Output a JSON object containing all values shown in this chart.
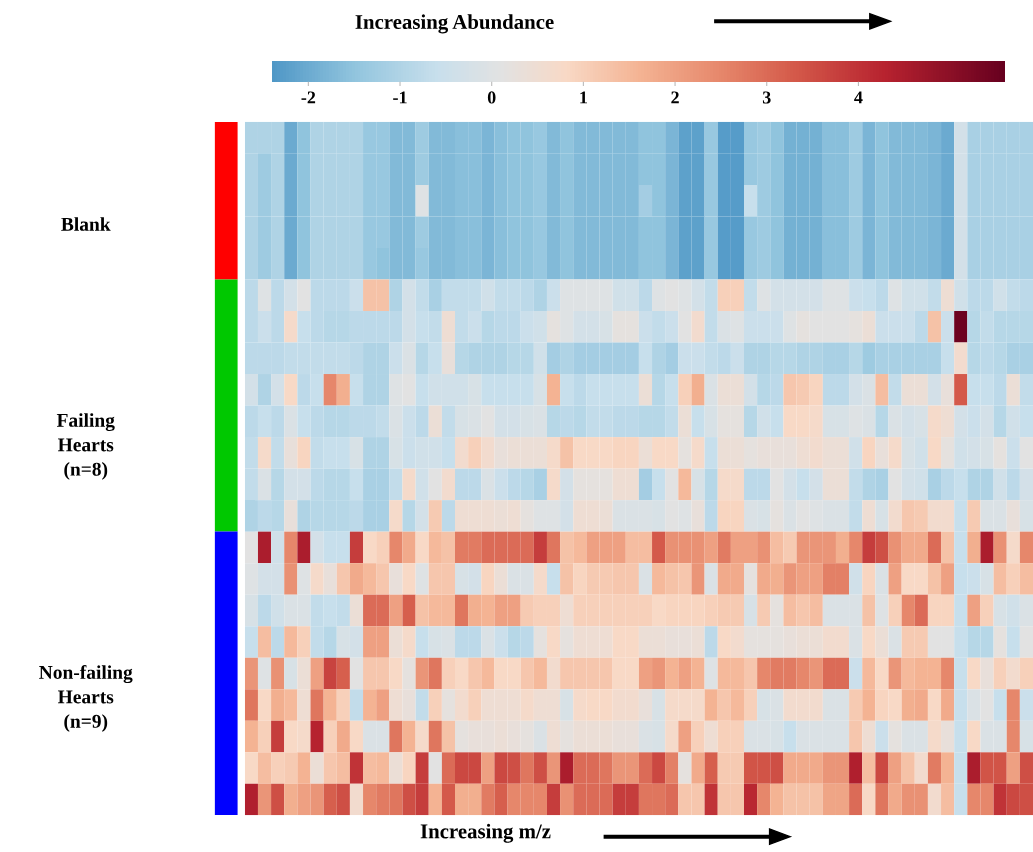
{
  "chart_data": {
    "type": "heatmap",
    "xlabel": "Increasing m/z",
    "clabel": "Increasing Abundance",
    "clim": [
      -2.4,
      5.6
    ],
    "cticks": [
      -2,
      -1,
      0,
      1,
      2,
      3,
      4
    ],
    "categories": [
      null,
      null,
      null,
      null,
      null,
      null,
      null,
      null,
      null,
      null,
      null,
      null,
      null,
      null,
      null,
      null,
      null,
      null,
      null,
      null,
      null,
      null,
      null,
      null,
      null,
      null,
      null,
      null,
      null,
      null,
      null,
      null,
      null,
      null,
      null,
      null,
      null,
      null,
      null,
      null,
      null,
      null,
      null,
      null,
      null,
      null,
      null,
      null,
      null,
      null,
      null,
      null,
      null,
      null,
      null,
      null,
      null,
      null,
      null,
      null
    ],
    "y_categories": [
      null,
      null,
      null,
      "Blank",
      null,
      null,
      null,
      null,
      null,
      null,
      "Failing Hearts (n=8)",
      null,
      null,
      null,
      null,
      null,
      null,
      null,
      "Non-failing Hearts (n=9)",
      null,
      null,
      null
    ],
    "cells": [
      [
        -1.0,
        -1.0,
        -1.0,
        -2.0,
        -1.5,
        -1.0,
        -1.0,
        -1.0,
        -1.0,
        -1.4,
        -1.4,
        -1.7,
        -1.7,
        -1.3,
        -1.7,
        -1.7,
        -1.6,
        -1.6,
        -1.8,
        -1.6,
        -1.5,
        -1.5,
        -1.4,
        -1.7,
        -1.5,
        -1.7,
        -1.7,
        -1.7,
        -1.7,
        -1.7,
        -1.5,
        -1.5,
        -1.8,
        -2.2,
        -2.2,
        -1.4,
        -2.3,
        -2.3,
        -1.4,
        -1.3,
        -1.5,
        -1.9,
        -1.9,
        -1.9,
        -1.6,
        -1.6,
        -1.3,
        -1.8,
        -1.5,
        -1.7,
        -1.7,
        -1.7,
        -1.8,
        -2.0,
        -0.3,
        -1.1,
        -1.1,
        -1.1,
        -1.1,
        -1.1
      ],
      [
        -1.0,
        -1.3,
        -1.0,
        -2.0,
        -1.5,
        -1.0,
        -1.0,
        -1.0,
        -1.0,
        -1.4,
        -1.4,
        -1.7,
        -1.7,
        -1.3,
        -1.7,
        -1.7,
        -1.6,
        -1.6,
        -1.8,
        -1.6,
        -1.5,
        -1.5,
        -1.4,
        -1.7,
        -1.5,
        -1.7,
        -1.7,
        -1.7,
        -1.7,
        -1.7,
        -1.5,
        -1.5,
        -1.8,
        -2.2,
        -2.2,
        -1.4,
        -2.3,
        -2.3,
        -1.4,
        -1.3,
        -1.5,
        -1.9,
        -1.9,
        -1.9,
        -1.6,
        -1.6,
        -1.3,
        -1.8,
        -1.5,
        -1.7,
        -1.7,
        -1.7,
        -1.8,
        -2.0,
        -0.3,
        -1.1,
        -1.1,
        -1.1,
        -1.1,
        -1.1
      ],
      [
        -1.0,
        -1.3,
        -1.0,
        -2.0,
        -1.5,
        -1.0,
        -1.0,
        -1.0,
        -1.0,
        -1.4,
        -1.4,
        -1.7,
        -1.7,
        0.0,
        -1.7,
        -1.7,
        -1.6,
        -1.6,
        -1.8,
        -1.6,
        -1.5,
        -1.5,
        -1.4,
        -1.7,
        -1.5,
        -1.7,
        -1.7,
        -1.7,
        -1.7,
        -1.7,
        -1.2,
        -1.5,
        -1.8,
        -2.2,
        -2.2,
        -1.4,
        -2.3,
        -2.3,
        -0.6,
        -1.3,
        -1.5,
        -1.9,
        -1.9,
        -1.9,
        -1.6,
        -1.6,
        -1.3,
        -1.8,
        -1.5,
        -1.7,
        -1.7,
        -1.7,
        -1.8,
        -2.0,
        -0.3,
        -1.1,
        -1.1,
        -1.1,
        -1.1,
        -1.1
      ],
      [
        -1.0,
        -1.3,
        -1.0,
        -2.0,
        -1.5,
        -1.0,
        -1.0,
        -1.0,
        -1.0,
        -1.4,
        -1.4,
        -1.7,
        -1.7,
        -1.3,
        -1.7,
        -1.7,
        -1.6,
        -1.6,
        -1.8,
        -1.6,
        -1.5,
        -1.5,
        -1.4,
        -1.7,
        -1.5,
        -1.7,
        -1.7,
        -1.7,
        -1.7,
        -1.7,
        -1.5,
        -1.5,
        -1.8,
        -2.2,
        -2.2,
        -1.4,
        -2.3,
        -2.3,
        -1.4,
        -1.3,
        -1.5,
        -1.9,
        -1.9,
        -1.9,
        -1.6,
        -1.6,
        -1.3,
        -1.8,
        -1.5,
        -1.7,
        -1.7,
        -1.7,
        -1.8,
        -2.0,
        -0.3,
        -1.1,
        -1.1,
        -1.1,
        -1.1,
        -1.1
      ],
      [
        -1.0,
        -1.3,
        -1.0,
        -2.0,
        -1.5,
        -1.0,
        -1.0,
        -1.0,
        -1.0,
        -1.4,
        -1.5,
        -1.7,
        -1.7,
        -1.4,
        -1.7,
        -1.7,
        -1.6,
        -1.6,
        -1.8,
        -1.6,
        -1.5,
        -1.5,
        -1.4,
        -1.7,
        -1.5,
        -1.7,
        -1.7,
        -1.7,
        -1.7,
        -1.7,
        -1.5,
        -1.5,
        -1.8,
        -2.2,
        -2.2,
        -1.4,
        -2.3,
        -2.3,
        -1.4,
        -1.3,
        -1.5,
        -1.9,
        -1.9,
        -1.9,
        -1.6,
        -1.6,
        -1.3,
        -1.8,
        -1.5,
        -1.7,
        -1.7,
        -1.7,
        -1.8,
        -2.0,
        -0.3,
        -1.1,
        -1.1,
        -1.1,
        -1.1,
        -1.1
      ],
      [
        -0.8,
        0.0,
        -0.8,
        -0.3,
        0.1,
        -0.8,
        -0.8,
        -0.8,
        -0.5,
        1.3,
        1.3,
        -1.0,
        -0.3,
        -0.7,
        -1.1,
        -0.7,
        -0.7,
        -0.7,
        -0.4,
        -0.7,
        -0.7,
        -0.8,
        -1.0,
        -0.5,
        0.0,
        0.0,
        0.0,
        0.0,
        -0.4,
        -0.4,
        -0.8,
        0.0,
        0.1,
        0.0,
        -0.3,
        -0.7,
        1.0,
        1.0,
        -0.7,
        0.0,
        -0.3,
        -0.3,
        -0.3,
        -0.3,
        0.0,
        0.0,
        -0.5,
        -0.6,
        -0.8,
        0.0,
        -0.4,
        -0.4,
        -0.7,
        0.5,
        -0.4,
        -0.8,
        -0.8,
        -0.4,
        -0.7,
        -0.8
      ],
      [
        -0.8,
        -0.5,
        -0.8,
        0.7,
        -0.6,
        -0.8,
        -0.9,
        -0.9,
        -0.8,
        -0.8,
        -0.8,
        -0.8,
        -0.3,
        -0.6,
        -0.7,
        0.5,
        -0.7,
        -0.5,
        -0.9,
        -0.8,
        -0.8,
        -0.5,
        -0.4,
        0.2,
        0.0,
        -0.3,
        -0.3,
        -0.2,
        0.2,
        0.2,
        -0.5,
        -0.7,
        -0.5,
        0.1,
        0.6,
        -0.7,
        -0.1,
        0.0,
        -0.5,
        -0.5,
        -0.5,
        0.0,
        0.2,
        0.1,
        0.1,
        0.1,
        0.2,
        0.4,
        -0.5,
        -0.5,
        -0.5,
        -0.8,
        1.3,
        -0.5,
        5.5,
        -0.9,
        -0.7,
        -0.9,
        -0.9,
        -0.9
      ],
      [
        -0.8,
        -0.8,
        -0.8,
        -0.7,
        -0.7,
        -0.7,
        -0.7,
        -0.7,
        -0.8,
        -1.0,
        -1.0,
        -0.5,
        -0.1,
        -0.9,
        -0.6,
        0.3,
        -0.9,
        -1.0,
        -1.0,
        -1.0,
        -0.9,
        -0.9,
        -0.4,
        -1.2,
        -1.0,
        -1.2,
        -1.2,
        -1.2,
        -1.2,
        -1.2,
        -0.6,
        -1.0,
        -1.2,
        -0.5,
        -0.5,
        -0.7,
        -0.8,
        -0.5,
        -1.0,
        -1.0,
        -0.9,
        -0.9,
        -1.0,
        -1.0,
        -1.1,
        -1.1,
        -0.9,
        -1.3,
        -1.1,
        -1.1,
        -1.1,
        -1.1,
        -1.1,
        -0.6,
        0.6,
        -0.9,
        -0.8,
        -0.9,
        -1.1,
        -1.1
      ],
      [
        -0.3,
        -1.0,
        -0.3,
        0.8,
        -0.8,
        -0.6,
        2.5,
        1.7,
        -0.6,
        -1.0,
        -1.0,
        0.0,
        0.1,
        -0.6,
        -0.4,
        -0.4,
        -0.4,
        -0.2,
        -0.6,
        -0.6,
        -0.6,
        -0.6,
        -0.2,
        1.6,
        -0.6,
        -0.8,
        -0.6,
        -0.6,
        -0.6,
        -0.6,
        0.4,
        -0.9,
        -0.6,
        1.0,
        1.7,
        -0.1,
        0.4,
        0.4,
        -0.3,
        -0.9,
        -0.8,
        1.2,
        1.1,
        0.9,
        -0.8,
        -0.8,
        -0.3,
        -0.1,
        1.4,
        -0.7,
        0.4,
        0.4,
        -0.3,
        0.3,
        3.3,
        -0.6,
        -0.6,
        -0.8,
        0.4,
        -0.7
      ],
      [
        -0.8,
        -0.6,
        -0.8,
        -0.1,
        -0.6,
        -0.8,
        -0.9,
        -0.9,
        -0.8,
        -0.8,
        -0.7,
        -0.1,
        -0.5,
        -0.8,
        0.4,
        -0.7,
        -0.2,
        -0.1,
        0.1,
        -0.3,
        -0.3,
        -0.2,
        -0.1,
        -0.9,
        -0.8,
        -0.9,
        -0.7,
        -0.7,
        -0.8,
        -0.8,
        -0.9,
        -0.9,
        -0.7,
        0.4,
        -0.6,
        -0.2,
        0.2,
        0.2,
        -0.9,
        -0.4,
        -0.6,
        0.8,
        0.8,
        0.7,
        -0.2,
        -0.2,
        0.0,
        -0.1,
        -0.9,
        -0.1,
        -0.3,
        -0.2,
        0.7,
        0.5,
        -0.3,
        -0.5,
        -0.3,
        -0.9,
        -0.4,
        -0.6
      ],
      [
        -0.7,
        0.7,
        -0.7,
        0.3,
        0.9,
        -0.7,
        -0.6,
        -0.6,
        -0.2,
        -1.0,
        -1.0,
        -0.2,
        -0.5,
        -0.4,
        -0.4,
        -0.6,
        0.6,
        1.0,
        0.6,
        0.3,
        0.4,
        0.4,
        0.4,
        0.7,
        1.3,
        0.8,
        0.8,
        0.8,
        0.9,
        0.9,
        0.4,
        0.8,
        0.8,
        0.2,
        0.7,
        -0.6,
        0.4,
        0.4,
        0.2,
        0.3,
        0.3,
        0.3,
        0.5,
        0.6,
        0.4,
        0.4,
        -0.4,
        0.9,
        0.3,
        0.7,
        -0.2,
        -0.4,
        0.8,
        0.2,
        -0.4,
        -0.3,
        -0.2,
        0.2,
        -0.5,
        0.1
      ],
      [
        -0.7,
        -0.1,
        -0.9,
        -0.3,
        -0.3,
        -0.8,
        -0.9,
        -0.9,
        -0.6,
        -1.1,
        -1.1,
        -0.7,
        0.7,
        -0.4,
        0.1,
        0.6,
        -0.8,
        -0.8,
        -0.1,
        -0.5,
        -0.8,
        -0.9,
        -1.1,
        0.7,
        -0.3,
        0.2,
        0.2,
        0.2,
        0.5,
        0.5,
        -1.2,
        -0.6,
        0.1,
        1.5,
        -0.2,
        -0.9,
        0.7,
        0.7,
        -0.8,
        -0.8,
        0.1,
        -0.3,
        -0.6,
        -0.3,
        0.4,
        0.4,
        -0.7,
        -1.0,
        -1.1,
        0.1,
        -0.3,
        -0.4,
        -1.1,
        -0.8,
        -0.6,
        -1.0,
        -1.0,
        -0.4,
        -0.8,
        -0.3
      ],
      [
        -1.0,
        -0.8,
        -0.9,
        0.3,
        -1.0,
        -0.9,
        -0.9,
        -0.9,
        -0.8,
        -1.1,
        -1.1,
        0.7,
        -0.9,
        -0.3,
        1.1,
        -0.8,
        0.5,
        0.5,
        0.5,
        0.4,
        0.5,
        0.2,
        0.0,
        0.0,
        -0.3,
        0.5,
        0.5,
        0.4,
        -0.1,
        -0.1,
        -0.1,
        -0.2,
        0.1,
        0.0,
        0.3,
        -0.8,
        0.9,
        0.9,
        -0.1,
        -0.2,
        0.2,
        -0.1,
        0.1,
        0.0,
        -0.1,
        -0.1,
        -0.7,
        0.5,
        -0.2,
        0.6,
        1.2,
        1.1,
        0.6,
        0.6,
        -0.6,
        1.1,
        -0.1,
        -0.1,
        0.3,
        -0.2
      ],
      [
        0.1,
        4.5,
        -0.4,
        2.5,
        4.5,
        -0.3,
        -0.6,
        -0.6,
        3.8,
        0.8,
        1.0,
        2.5,
        1.8,
        0.8,
        1.5,
        1.3,
        2.7,
        2.7,
        3.0,
        3.0,
        3.0,
        3.0,
        3.8,
        2.8,
        1.3,
        1.5,
        2.0,
        2.0,
        2.0,
        1.4,
        1.4,
        3.3,
        2.3,
        2.3,
        2.3,
        2.0,
        2.7,
        2.0,
        2.0,
        2.3,
        1.4,
        1.1,
        2.2,
        2.2,
        2.2,
        1.7,
        2.5,
        3.8,
        3.5,
        2.3,
        1.8,
        1.8,
        3.0,
        1.3,
        -0.6,
        1.7,
        4.5,
        2.3,
        0.7,
        2.5
      ],
      [
        0.0,
        -0.3,
        -0.3,
        2.3,
        0.0,
        0.7,
        0.3,
        1.2,
        1.8,
        1.5,
        1.2,
        0.3,
        0.8,
        0.0,
        1.2,
        1.2,
        -0.2,
        -0.3,
        0.9,
        0.4,
        -0.1,
        -0.1,
        0.7,
        -0.6,
        1.3,
        0.9,
        1.1,
        1.1,
        1.2,
        1.2,
        -0.1,
        1.5,
        1.3,
        1.2,
        2.2,
        -0.1,
        1.8,
        1.8,
        0.2,
        1.8,
        1.7,
        2.2,
        2.0,
        2.0,
        2.6,
        2.6,
        -0.4,
        0.9,
        -0.1,
        2.0,
        0.8,
        0.8,
        1.3,
        2.0,
        -0.6,
        -0.5,
        -0.2,
        1.4,
        1.0,
        1.4
      ],
      [
        -0.2,
        -0.8,
        -0.4,
        -0.1,
        -0.1,
        -0.7,
        -0.6,
        -0.7,
        0.4,
        3.0,
        3.0,
        2.0,
        3.2,
        1.3,
        1.5,
        1.5,
        2.8,
        1.7,
        1.6,
        2.0,
        2.0,
        1.1,
        1.0,
        1.0,
        0.5,
        1.0,
        1.0,
        1.0,
        1.0,
        1.0,
        1.0,
        0.8,
        0.9,
        0.9,
        0.9,
        1.0,
        1.1,
        1.1,
        -0.2,
        1.1,
        0.2,
        1.4,
        1.2,
        1.4,
        -0.1,
        -0.1,
        -0.1,
        1.3,
        0.0,
        1.0,
        2.5,
        3.0,
        0.9,
        0.9,
        -0.6,
        2.0,
        1.0,
        -0.2,
        -0.4,
        -0.1
      ],
      [
        -0.6,
        1.4,
        -0.8,
        1.5,
        1.0,
        -0.7,
        -0.9,
        -0.2,
        -0.3,
        2.0,
        2.0,
        0.4,
        0.7,
        -0.6,
        -0.2,
        -0.1,
        -0.8,
        -0.8,
        -0.1,
        -0.5,
        -0.9,
        -0.8,
        0.2,
        0.8,
        0.2,
        0.5,
        0.5,
        0.5,
        0.8,
        0.8,
        0.4,
        0.4,
        0.3,
        0.3,
        0.4,
        -0.8,
        0.8,
        0.6,
        0.2,
        0.2,
        0.2,
        0.3,
        0.4,
        0.4,
        0.6,
        0.6,
        -0.1,
        0.8,
        0.4,
        -0.1,
        1.1,
        1.1,
        0.1,
        0.1,
        -0.6,
        -0.9,
        -0.9,
        0.2,
        -0.6,
        0.1
      ],
      [
        2.2,
        0.0,
        2.3,
        -0.2,
        0.4,
        2.0,
        3.7,
        3.2,
        0.1,
        1.2,
        1.2,
        0.8,
        0.2,
        2.2,
        2.8,
        1.0,
        0.8,
        1.2,
        1.5,
        0.8,
        0.8,
        1.2,
        1.5,
        0.6,
        1.2,
        1.2,
        1.2,
        1.2,
        0.8,
        0.8,
        2.0,
        2.2,
        1.6,
        2.0,
        1.6,
        0.0,
        1.5,
        1.5,
        1.2,
        2.5,
        2.7,
        2.7,
        2.5,
        2.2,
        3.0,
        3.0,
        -0.5,
        1.5,
        0.8,
        2.2,
        1.5,
        1.6,
        1.6,
        2.5,
        -0.6,
        0.8,
        0.3,
        1.0,
        0.6,
        1.0
      ],
      [
        2.8,
        0.8,
        1.7,
        1.5,
        0.5,
        2.8,
        1.6,
        1.0,
        -0.7,
        1.6,
        2.0,
        0.5,
        0.3,
        -0.7,
        1.0,
        0.2,
        0.6,
        1.0,
        0.5,
        0.5,
        0.5,
        0.7,
        0.5,
        0.5,
        -0.2,
        0.7,
        0.8,
        0.8,
        0.6,
        0.6,
        0.3,
        -0.2,
        0.7,
        0.7,
        0.7,
        1.6,
        1.2,
        1.5,
        1.0,
        -0.2,
        -0.1,
        0.6,
        0.6,
        0.6,
        -0.1,
        -0.1,
        1.1,
        1.6,
        0.9,
        0.8,
        1.7,
        1.8,
        0.8,
        1.8,
        -0.6,
        -0.1,
        0.1,
        -0.6,
        2.5,
        -0.5
      ],
      [
        1.6,
        1.0,
        3.8,
        0.8,
        0.7,
        4.3,
        1.0,
        1.8,
        0.8,
        -0.1,
        -0.1,
        2.8,
        1.6,
        0.7,
        2.8,
        1.3,
        0.2,
        0.3,
        0.3,
        0.4,
        0.3,
        0.2,
        -0.1,
        0.5,
        0.2,
        0.4,
        0.4,
        0.4,
        0.3,
        0.3,
        -0.1,
        -0.2,
        0.7,
        2.0,
        1.0,
        0.5,
        1.0,
        1.0,
        -0.1,
        -0.1,
        -0.2,
        -0.6,
        -0.1,
        -0.1,
        -0.1,
        -0.1,
        1.2,
        0.5,
        -0.5,
        0.2,
        -0.1,
        -0.1,
        0.7,
        0.3,
        -0.6,
        0.8,
        -0.1,
        -0.1,
        2.5,
        -0.2
      ],
      [
        0.8,
        1.4,
        1.0,
        1.1,
        1.6,
        0.4,
        1.2,
        1.4,
        4.0,
        1.4,
        1.5,
        0.4,
        0.9,
        3.8,
        0.1,
        3.0,
        3.6,
        3.6,
        2.0,
        3.6,
        3.5,
        2.8,
        3.5,
        2.2,
        4.5,
        3.0,
        3.0,
        2.8,
        2.2,
        2.2,
        3.0,
        3.6,
        2.6,
        0.2,
        1.8,
        3.2,
        1.1,
        1.1,
        3.4,
        3.4,
        3.5,
        1.8,
        1.8,
        1.8,
        2.2,
        2.2,
        4.4,
        1.4,
        3.6,
        2.0,
        1.3,
        0.6,
        2.7,
        1.6,
        -0.6,
        4.5,
        3.4,
        3.4,
        2.0,
        3.5
      ],
      [
        4.4,
        2.2,
        3.5,
        1.7,
        2.0,
        2.2,
        3.2,
        3.5,
        0.6,
        2.5,
        2.7,
        2.8,
        3.5,
        3.8,
        1.6,
        3.3,
        1.7,
        1.7,
        2.7,
        3.2,
        2.5,
        2.5,
        2.5,
        3.8,
        2.3,
        3.0,
        3.0,
        3.0,
        3.8,
        3.8,
        2.8,
        2.8,
        3.0,
        1.2,
        1.2,
        4.0,
        1.2,
        1.2,
        4.2,
        2.5,
        1.6,
        1.3,
        1.3,
        1.3,
        1.9,
        1.9,
        3.0,
        0.8,
        2.8,
        1.8,
        2.3,
        2.3,
        0.6,
        1.4,
        -0.6,
        2.5,
        2.5,
        4.0,
        3.6,
        3.5
      ]
    ]
  }
}
